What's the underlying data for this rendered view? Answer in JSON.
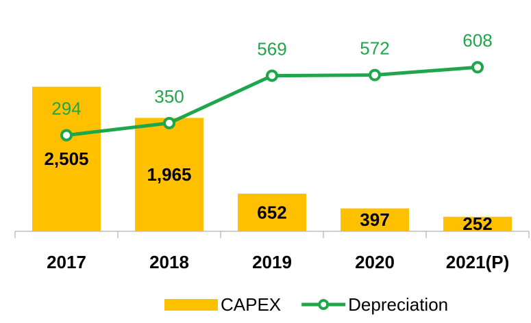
{
  "chart_data": {
    "type": "bar",
    "categories": [
      "2017",
      "2018",
      "2019",
      "2020",
      "2021(P)"
    ],
    "series": [
      {
        "name": "CAPEX",
        "type": "bar",
        "color": "#ffc000",
        "values": [
          2505,
          1965,
          652,
          397,
          252
        ],
        "value_labels": [
          "2,505",
          "1,965",
          "652",
          "397",
          "252"
        ]
      },
      {
        "name": "Depreciation",
        "type": "line",
        "axis": "y2",
        "color": "#1fa64a",
        "values": [
          294,
          350,
          569,
          572,
          608
        ]
      }
    ],
    "ylim": [
      0,
      3000
    ],
    "y2lim": [
      -150,
      650
    ],
    "legend": "bottom"
  }
}
